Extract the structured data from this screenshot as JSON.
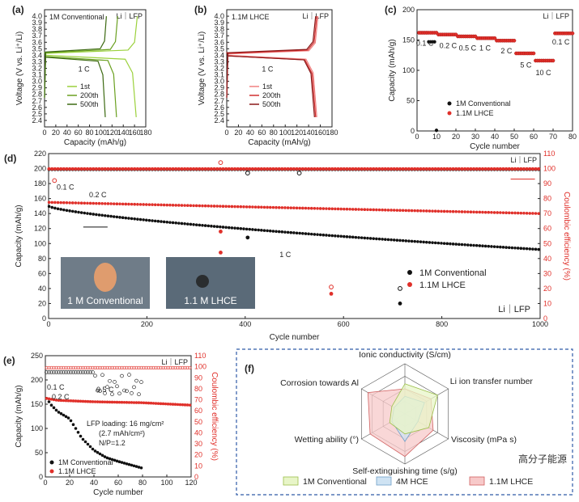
{
  "colors": {
    "green": "#9bd13c",
    "green_mid": "#6aa020",
    "green_dark": "#3d6a12",
    "red1": "#f08080",
    "red2": "#d03030",
    "red3": "#8a1818",
    "red": "#e0302a",
    "black": "#111111"
  },
  "chart_data": [
    {
      "panel": "(a)",
      "type": "line",
      "title": "1M Conventional",
      "corner_label": "Li｜LFP",
      "xlabel": "Capacity (mAh/g)",
      "ylabel": "Voltage (V vs. Li⁺/Li)",
      "xlim": [
        0,
        180
      ],
      "ylim": [
        2.3,
        4.1
      ],
      "xticks": [
        0,
        20,
        40,
        60,
        80,
        100,
        120,
        140,
        160,
        180
      ],
      "yticks": [
        2.4,
        2.5,
        2.6,
        2.7,
        2.8,
        2.9,
        3.0,
        3.1,
        3.2,
        3.3,
        3.4,
        3.5,
        3.6,
        3.7,
        3.8,
        3.9,
        4.0
      ],
      "annotation": "1 C",
      "series": [
        {
          "name": "1st",
          "color": "green",
          "charge_capacity": 165,
          "discharge_capacity": 163,
          "plateau_charge": 3.45,
          "plateau_discharge": 3.38
        },
        {
          "name": "200th",
          "color": "green_mid",
          "charge_capacity": 130,
          "discharge_capacity": 128,
          "plateau_charge": 3.46,
          "plateau_discharge": 3.36
        },
        {
          "name": "500th",
          "color": "green_dark",
          "charge_capacity": 110,
          "discharge_capacity": 108,
          "plateau_charge": 3.47,
          "plateau_discharge": 3.35
        }
      ]
    },
    {
      "panel": "(b)",
      "type": "line",
      "title": "1.1M LHCE",
      "corner_label": "Li｜LFP",
      "xlabel": "Capacity (mAh/g)",
      "ylabel": "Voltage (V vs. Li⁺/Li)",
      "xlim": [
        0,
        180
      ],
      "ylim": [
        2.3,
        4.1
      ],
      "xticks": [
        0,
        20,
        40,
        60,
        80,
        100,
        120,
        140,
        160,
        180
      ],
      "yticks": [
        2.4,
        2.5,
        2.6,
        2.7,
        2.8,
        2.9,
        3.0,
        3.1,
        3.2,
        3.3,
        3.4,
        3.5,
        3.6,
        3.7,
        3.8,
        3.9,
        4.0
      ],
      "annotation": "1 C",
      "series": [
        {
          "name": "1st",
          "color": "red1",
          "charge_capacity": 156,
          "discharge_capacity": 154,
          "plateau_charge": 3.44,
          "plateau_discharge": 3.38
        },
        {
          "name": "200th",
          "color": "red2",
          "charge_capacity": 154,
          "discharge_capacity": 152,
          "plateau_charge": 3.45,
          "plateau_discharge": 3.37
        },
        {
          "name": "500th",
          "color": "red3",
          "charge_capacity": 152,
          "discharge_capacity": 150,
          "plateau_charge": 3.46,
          "plateau_discharge": 3.37
        }
      ]
    },
    {
      "panel": "(c)",
      "type": "scatter",
      "corner_label": "Li｜LFP",
      "xlabel": "Cycle number",
      "ylabel": "Capacity (mAh/g)",
      "xlim": [
        0,
        80
      ],
      "ylim": [
        0,
        200
      ],
      "xticks": [
        0,
        10,
        20,
        30,
        40,
        50,
        60,
        70,
        80
      ],
      "yticks": [
        0,
        50,
        100,
        150,
        200
      ],
      "rate_labels": [
        {
          "text": "0.1 C",
          "x": 4,
          "y": 141
        },
        {
          "text": "0.2 C",
          "x": 16,
          "y": 137
        },
        {
          "text": "0.5 C",
          "x": 26,
          "y": 133
        },
        {
          "text": "1 C",
          "x": 35,
          "y": 133
        },
        {
          "text": "2 C",
          "x": 46,
          "y": 128
        },
        {
          "text": "5 C",
          "x": 56,
          "y": 105
        },
        {
          "text": "10 C",
          "x": 65,
          "y": 92
        },
        {
          "text": "0.1 C",
          "x": 74,
          "y": 143
        }
      ],
      "series": [
        {
          "name": "1M Conventional",
          "color": "black",
          "segments": [
            [
              1,
              5,
              161
            ],
            [
              6,
              9,
              146
            ],
            [
              10,
              10,
              0
            ]
          ]
        },
        {
          "name": "1.1M LHCE",
          "color": "red",
          "segments": [
            [
              1,
              10,
              162
            ],
            [
              11,
              20,
              159
            ],
            [
              21,
              30,
              156
            ],
            [
              31,
              40,
              153
            ],
            [
              41,
              50,
              149
            ],
            [
              51,
              60,
              128
            ],
            [
              61,
              70,
              116
            ],
            [
              71,
              80,
              161
            ]
          ]
        }
      ]
    },
    {
      "panel": "(d)",
      "type": "scatter",
      "corner_label": "Li｜LFP",
      "xlabel": "Cycle number",
      "ylabel": "Capacity (mAh/g)",
      "y2label": "Coulombic efficiency (%)",
      "xlim": [
        0,
        1000
      ],
      "ylim": [
        0,
        220
      ],
      "y2lim": [
        0,
        110
      ],
      "xticks": [
        0,
        200,
        400,
        600,
        800,
        1000
      ],
      "yticks": [
        0,
        20,
        40,
        60,
        80,
        100,
        120,
        140,
        160,
        180,
        200,
        220
      ],
      "y2ticks": [
        0,
        10,
        20,
        30,
        40,
        50,
        60,
        70,
        80,
        90,
        100,
        110
      ],
      "annotations": [
        "0.1 C",
        "0.2 C",
        "1 C"
      ],
      "photo_labels": [
        "1 M Conventional",
        "1.1 M LHCE"
      ],
      "series": [
        {
          "name": "1M Conventional",
          "color": "black",
          "capacity": {
            "start": 150,
            "end_cycle": 1000,
            "end": 92
          },
          "outliers": [
            [
              405,
              108
            ],
            [
              715,
              20
            ]
          ],
          "ce_outliers": [
            [
              405,
              97
            ],
            [
              510,
              97
            ],
            [
              715,
              20
            ]
          ]
        },
        {
          "name": "1.1M LHCE",
          "color": "red",
          "capacity": {
            "start": 155,
            "end_cycle": 1000,
            "end": 140
          },
          "outliers": [
            [
              350,
              116
            ],
            [
              350,
              88
            ],
            [
              575,
              33
            ]
          ],
          "ce_outliers": [
            [
              350,
              104
            ],
            [
              575,
              21
            ],
            [
              12,
              92
            ]
          ]
        }
      ]
    },
    {
      "panel": "(e)",
      "type": "scatter",
      "corner_label": "Li｜LFP",
      "xlabel": "Cycle number",
      "ylabel": "Capacity (mAh/g)",
      "y2label": "Coulombic efficiency (%)",
      "xlim": [
        0,
        120
      ],
      "ylim": [
        0,
        250
      ],
      "y2lim": [
        0,
        110
      ],
      "xticks": [
        0,
        20,
        40,
        60,
        80,
        100,
        120
      ],
      "yticks": [
        0,
        50,
        100,
        150,
        200,
        250
      ],
      "y2ticks": [
        0,
        10,
        20,
        30,
        40,
        50,
        60,
        70,
        80,
        90,
        100,
        110
      ],
      "annotations": [
        "0.1 C",
        "0.2 C",
        "0.5 C"
      ],
      "notes": [
        "LFP loading: 16 mg/cm²",
        "(2.7 mAh/cm²)",
        "N/P=1.2"
      ],
      "series": [
        {
          "name": "1M Conventional",
          "color": "black",
          "capacity": [
            [
              1,
              162
            ],
            [
              5,
              148
            ],
            [
              10,
              135
            ],
            [
              20,
              120
            ],
            [
              30,
              80
            ],
            [
              40,
              55
            ],
            [
              50,
              40
            ],
            [
              60,
              32
            ],
            [
              70,
              25
            ],
            [
              80,
              18
            ]
          ]
        },
        {
          "name": "1.1M LHCE",
          "color": "red",
          "capacity": [
            [
              1,
              162
            ],
            [
              10,
              158
            ],
            [
              40,
              155
            ],
            [
              80,
              153
            ],
            [
              120,
              148
            ]
          ]
        }
      ]
    },
    {
      "panel": "(f)",
      "type": "radar",
      "axes": [
        "Ionic conductivity (S/cm)",
        "Li ion transfer number",
        "Viscosity (mPa s)",
        "Self-extinguishing time (s/g)",
        "Wetting ability (°)",
        "Corrosion towards Al"
      ],
      "series": [
        {
          "name": "1M Conventional",
          "color": "#e8f5c8",
          "stroke": "#9bbf4a",
          "values": [
            0.6,
            0.75,
            0.55,
            0.4,
            0.35,
            0.3
          ]
        },
        {
          "name": "4M HCE",
          "color": "#cfe3f3",
          "stroke": "#6f9ec8",
          "values": [
            0.35,
            0.45,
            0.3,
            0.55,
            0.3,
            0.25
          ]
        },
        {
          "name": "1.1M LHCE",
          "color": "#f7c9c9",
          "stroke": "#d06060",
          "values": [
            0.5,
            0.6,
            0.65,
            0.85,
            0.8,
            0.85
          ]
        }
      ]
    }
  ],
  "watermark": "高分子能源"
}
